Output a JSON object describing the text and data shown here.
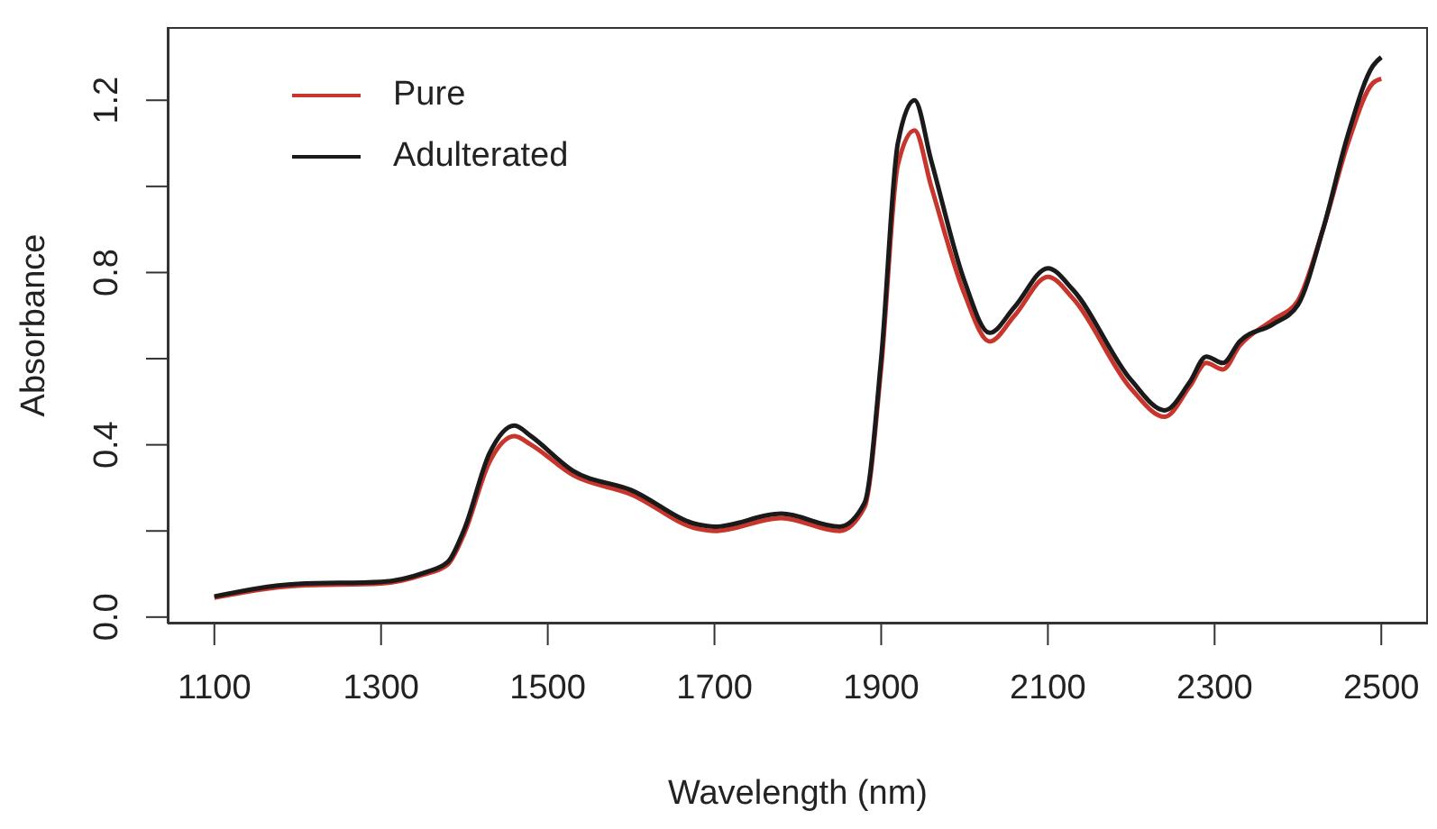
{
  "chart_data": {
    "type": "line",
    "xlabel": "Wavelength (nm)",
    "ylabel": "Absorbance",
    "xlim": [
      1044,
      2556
    ],
    "xticks": [
      1100,
      1300,
      1500,
      1700,
      1900,
      2100,
      2300,
      2500
    ],
    "ylim": [
      -0.015,
      1.37
    ],
    "yticks": [
      {
        "value": 0,
        "label": "0.0"
      },
      {
        "value": 0.2,
        "label": null
      },
      0.4,
      {
        "value": 0.6,
        "label": null
      },
      0.8,
      {
        "value": 1,
        "label": null
      },
      1.2
    ],
    "x": [
      1100,
      1200,
      1300,
      1350,
      1380,
      1400,
      1430,
      1460,
      1480,
      1530,
      1600,
      1680,
      1700,
      1780,
      1850,
      1880,
      1900,
      1920,
      1940,
      1960,
      2000,
      2030,
      2060,
      2100,
      2130,
      2200,
      2240,
      2270,
      2290,
      2310,
      2330,
      2370,
      2400,
      2430,
      2460,
      2490,
      2500
    ],
    "series": [
      {
        "name": "Pure",
        "color": "#c8352c",
        "values": [
          0.045,
          0.073,
          0.078,
          0.098,
          0.122,
          0.195,
          0.36,
          0.42,
          0.4,
          0.33,
          0.285,
          0.205,
          0.2,
          0.23,
          0.2,
          0.255,
          0.58,
          1.05,
          1.13,
          1.0,
          0.75,
          0.64,
          0.7,
          0.79,
          0.74,
          0.53,
          0.465,
          0.535,
          0.59,
          0.575,
          0.63,
          0.69,
          0.735,
          0.9,
          1.1,
          1.24,
          1.25
        ]
      },
      {
        "name": "Adulterated",
        "color": "#1a1a1a",
        "values": [
          0.048,
          0.077,
          0.082,
          0.102,
          0.128,
          0.205,
          0.38,
          0.445,
          0.42,
          0.34,
          0.295,
          0.215,
          0.21,
          0.24,
          0.21,
          0.265,
          0.6,
          1.1,
          1.2,
          1.06,
          0.78,
          0.66,
          0.72,
          0.81,
          0.76,
          0.55,
          0.48,
          0.545,
          0.605,
          0.59,
          0.64,
          0.68,
          0.725,
          0.9,
          1.12,
          1.28,
          1.3
        ]
      }
    ],
    "grid": false,
    "legend": "top left",
    "marker": "none",
    "line_style": "solid"
  }
}
